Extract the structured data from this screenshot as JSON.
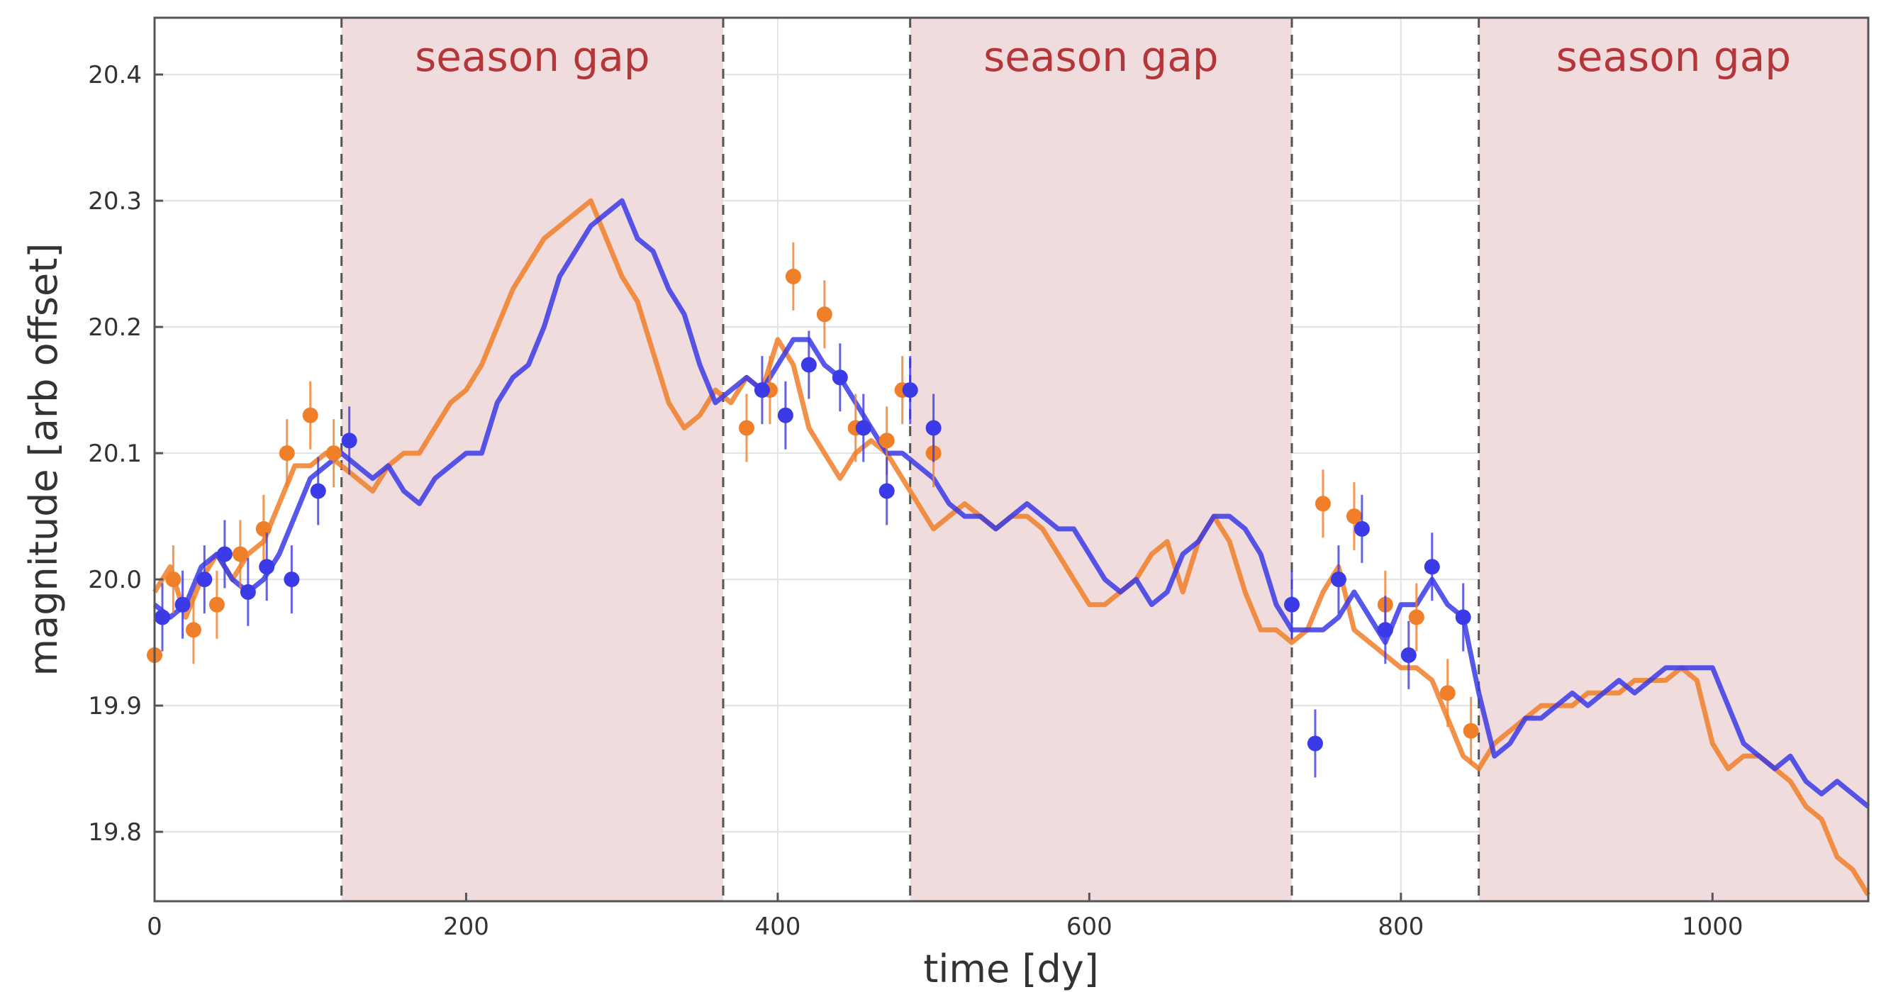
{
  "chart_data": {
    "type": "scatter",
    "xlabel": "time [dy]",
    "ylabel": "magnitude [arb offset]",
    "xlim": [
      0,
      1100
    ],
    "ylim": [
      19.745,
      20.445
    ],
    "x_ticks": [
      0,
      200,
      400,
      600,
      800,
      1000
    ],
    "y_ticks": [
      {
        "value": 19.8,
        "label": "19.8"
      },
      {
        "value": 19.9,
        "label": "19.9"
      },
      {
        "value": 20.0,
        "label": "20.0"
      },
      {
        "value": 20.1,
        "label": "20.1"
      },
      {
        "value": 20.2,
        "label": "20.2"
      },
      {
        "value": 20.3,
        "label": "20.3"
      },
      {
        "value": 20.4,
        "label": "20.4"
      }
    ],
    "grid": true,
    "legend": "none",
    "season_gaps": [
      {
        "start": 120,
        "end": 365,
        "label": "season gap"
      },
      {
        "start": 485,
        "end": 730,
        "label": "season gap"
      },
      {
        "start": 850,
        "end": 1100,
        "label": "season gap"
      }
    ],
    "colors": {
      "series_a": "#f07f2a",
      "series_b": "#3a3ae6",
      "gap_fill": "#f0dcdc",
      "gap_line": "#555555",
      "gap_text": "#b5363a"
    },
    "series": [
      {
        "style": "line",
        "color": "#f07f2a",
        "x": [
          0,
          10,
          20,
          30,
          40,
          50,
          60,
          70,
          80,
          90,
          100,
          110,
          120,
          130,
          140,
          150,
          160,
          170,
          180,
          190,
          200,
          210,
          220,
          230,
          240,
          250,
          260,
          270,
          280,
          290,
          300,
          310,
          320,
          330,
          340,
          350,
          360,
          370,
          380,
          390,
          400,
          410,
          420,
          430,
          440,
          450,
          460,
          470,
          480,
          490,
          500,
          510,
          520,
          530,
          540,
          550,
          560,
          570,
          580,
          590,
          600,
          610,
          620,
          630,
          640,
          650,
          660,
          670,
          680,
          690,
          700,
          710,
          720,
          730,
          740,
          750,
          760,
          770,
          780,
          790,
          800,
          810,
          820,
          830,
          840,
          850,
          860,
          870,
          880,
          890,
          900,
          910,
          920,
          930,
          940,
          950,
          960,
          970,
          980,
          990,
          1000,
          1010,
          1020,
          1030,
          1040,
          1050,
          1060,
          1070,
          1080,
          1090,
          1100
        ],
        "y": [
          19.99,
          20.01,
          19.97,
          20.0,
          20.02,
          20.0,
          20.02,
          20.03,
          20.06,
          20.09,
          20.09,
          20.1,
          20.09,
          20.08,
          20.07,
          20.09,
          20.1,
          20.1,
          20.12,
          20.14,
          20.15,
          20.17,
          20.2,
          20.23,
          20.25,
          20.27,
          20.28,
          20.29,
          20.3,
          20.27,
          20.24,
          20.22,
          20.18,
          20.14,
          20.12,
          20.13,
          20.15,
          20.14,
          20.16,
          20.15,
          20.19,
          20.17,
          20.12,
          20.1,
          20.08,
          20.1,
          20.11,
          20.1,
          20.08,
          20.06,
          20.04,
          20.05,
          20.06,
          20.05,
          20.04,
          20.05,
          20.05,
          20.04,
          20.02,
          20.0,
          19.98,
          19.98,
          19.99,
          20.0,
          20.02,
          20.03,
          19.99,
          20.03,
          20.05,
          20.03,
          19.99,
          19.96,
          19.96,
          19.95,
          19.96,
          19.99,
          20.01,
          19.96,
          19.95,
          19.94,
          19.93,
          19.93,
          19.92,
          19.89,
          19.86,
          19.85,
          19.87,
          19.88,
          19.89,
          19.9,
          19.9,
          19.9,
          19.91,
          19.91,
          19.91,
          19.92,
          19.92,
          19.92,
          19.93,
          19.92,
          19.87,
          19.85,
          19.86,
          19.86,
          19.85,
          19.84,
          19.82,
          19.81,
          19.78,
          19.77,
          19.75
        ]
      },
      {
        "style": "line",
        "color": "#3a3ae6",
        "x": [
          0,
          10,
          20,
          30,
          40,
          50,
          60,
          70,
          80,
          90,
          100,
          110,
          120,
          130,
          140,
          150,
          160,
          170,
          180,
          190,
          200,
          210,
          220,
          230,
          240,
          250,
          260,
          270,
          280,
          290,
          300,
          310,
          320,
          330,
          340,
          350,
          360,
          370,
          380,
          390,
          400,
          410,
          420,
          430,
          440,
          450,
          460,
          470,
          480,
          490,
          500,
          510,
          520,
          530,
          540,
          550,
          560,
          570,
          580,
          590,
          600,
          610,
          620,
          630,
          640,
          650,
          660,
          670,
          680,
          690,
          700,
          710,
          720,
          730,
          740,
          750,
          760,
          770,
          780,
          790,
          800,
          810,
          820,
          830,
          840,
          850,
          860,
          870,
          880,
          890,
          900,
          910,
          920,
          930,
          940,
          950,
          960,
          970,
          980,
          990,
          1000,
          1010,
          1020,
          1030,
          1040,
          1050,
          1060,
          1070,
          1080,
          1090,
          1100
        ],
        "y": [
          19.98,
          19.97,
          19.98,
          20.01,
          20.02,
          20.0,
          19.99,
          20.0,
          20.02,
          20.05,
          20.08,
          20.09,
          20.1,
          20.09,
          20.08,
          20.09,
          20.07,
          20.06,
          20.08,
          20.09,
          20.1,
          20.1,
          20.14,
          20.16,
          20.17,
          20.2,
          20.24,
          20.26,
          20.28,
          20.29,
          20.3,
          20.27,
          20.26,
          20.23,
          20.21,
          20.17,
          20.14,
          20.15,
          20.16,
          20.15,
          20.17,
          20.19,
          20.19,
          20.17,
          20.16,
          20.14,
          20.12,
          20.1,
          20.1,
          20.09,
          20.08,
          20.06,
          20.05,
          20.05,
          20.04,
          20.05,
          20.06,
          20.05,
          20.04,
          20.04,
          20.02,
          20.0,
          19.99,
          20.0,
          19.98,
          19.99,
          20.02,
          20.03,
          20.05,
          20.05,
          20.04,
          20.02,
          19.98,
          19.96,
          19.96,
          19.96,
          19.97,
          19.99,
          19.97,
          19.95,
          19.98,
          19.98,
          20.0,
          19.98,
          19.97,
          19.91,
          19.86,
          19.87,
          19.89,
          19.89,
          19.9,
          19.91,
          19.9,
          19.91,
          19.92,
          19.91,
          19.92,
          19.93,
          19.93,
          19.93,
          19.93,
          19.9,
          19.87,
          19.86,
          19.85,
          19.86,
          19.84,
          19.83,
          19.84,
          19.83,
          19.82
        ]
      },
      {
        "style": "points",
        "color": "#f07f2a",
        "x": [
          0,
          12,
          25,
          40,
          55,
          70,
          85,
          100,
          115,
          380,
          395,
          410,
          430,
          450,
          470,
          480,
          500,
          750,
          770,
          790,
          810,
          830,
          845
        ],
        "y": [
          19.94,
          20.0,
          19.96,
          19.98,
          20.02,
          20.04,
          20.1,
          20.13,
          20.1,
          20.12,
          20.15,
          20.24,
          20.21,
          20.12,
          20.11,
          20.15,
          20.1,
          20.06,
          20.05,
          19.98,
          19.97,
          19.91,
          19.88
        ]
      },
      {
        "style": "points",
        "color": "#3a3ae6",
        "x": [
          5,
          18,
          32,
          45,
          60,
          72,
          88,
          105,
          125,
          390,
          405,
          420,
          440,
          455,
          470,
          485,
          500,
          730,
          745,
          760,
          775,
          790,
          805,
          820,
          840
        ],
        "y": [
          19.97,
          19.98,
          20.0,
          20.02,
          19.99,
          20.01,
          20.0,
          20.07,
          20.11,
          20.15,
          20.13,
          20.17,
          20.16,
          20.12,
          20.07,
          20.15,
          20.12,
          19.98,
          19.87,
          20.0,
          20.04,
          19.96,
          19.94,
          20.01,
          19.97
        ]
      }
    ]
  }
}
